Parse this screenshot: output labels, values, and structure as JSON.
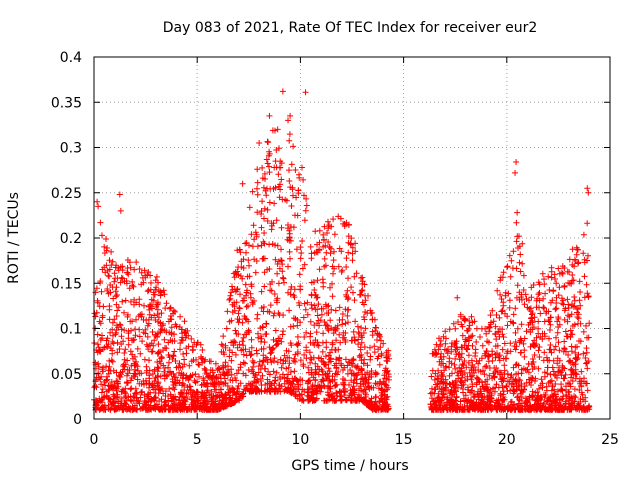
{
  "chart_data": {
    "type": "scatter",
    "title": "Day 083 of 2021, Rate Of TEC Index for receiver eur2",
    "xlabel": "GPS time / hours",
    "ylabel": "ROTI / TECUs",
    "xlim": [
      0,
      25
    ],
    "ylim": [
      0,
      0.4
    ],
    "x_ticks": [
      0,
      5,
      10,
      15,
      20,
      25
    ],
    "y_ticks": [
      0,
      0.05,
      0.1,
      0.15,
      0.2,
      0.25,
      0.3,
      0.35,
      0.4
    ],
    "x_tick_labels": [
      "0",
      "5",
      "10",
      "15",
      "20",
      "25"
    ],
    "y_tick_labels": [
      "0",
      "0.05",
      "0.1",
      "0.15",
      "0.2",
      "0.25",
      "0.3",
      "0.35",
      "0.4"
    ],
    "grid": true,
    "marker": "+",
    "color": "#ff0000",
    "envelope": {
      "note_x_hours": [
        0.0,
        0.3,
        1.0,
        2.0,
        3.0,
        4.0,
        5.0,
        6.0,
        7.0,
        7.5,
        8.0,
        8.5,
        9.0,
        9.5,
        10.0,
        10.5,
        11.0,
        12.0,
        12.5,
        13.0,
        13.5,
        14.0,
        14.2,
        16.3,
        17.0,
        18.0,
        19.0,
        20.0,
        20.5,
        21.0,
        22.0,
        23.0,
        23.5,
        24.0
      ],
      "upper_roti": [
        0.12,
        0.23,
        0.17,
        0.18,
        0.16,
        0.12,
        0.09,
        0.06,
        0.2,
        0.23,
        0.3,
        0.32,
        0.32,
        0.32,
        0.3,
        0.2,
        0.22,
        0.23,
        0.21,
        0.16,
        0.12,
        0.09,
        0.08,
        0.08,
        0.1,
        0.12,
        0.1,
        0.18,
        0.25,
        0.14,
        0.17,
        0.18,
        0.2,
        0.24
      ],
      "lower_roti": [
        0.01,
        0.01,
        0.01,
        0.01,
        0.01,
        0.01,
        0.01,
        0.01,
        0.02,
        0.03,
        0.03,
        0.03,
        0.03,
        0.03,
        0.02,
        0.02,
        0.02,
        0.02,
        0.02,
        0.02,
        0.01,
        0.01,
        0.01,
        0.01,
        0.01,
        0.01,
        0.01,
        0.01,
        0.01,
        0.01,
        0.01,
        0.01,
        0.01,
        0.01
      ]
    },
    "data_gaps_hours": [
      [
        14.3,
        16.3
      ]
    ],
    "outliers": [
      {
        "x": 0.15,
        "y": 0.24
      },
      {
        "x": 0.2,
        "y": 0.235
      },
      {
        "x": 1.25,
        "y": 0.248
      },
      {
        "x": 1.3,
        "y": 0.23
      },
      {
        "x": 7.2,
        "y": 0.26
      },
      {
        "x": 8.0,
        "y": 0.305
      },
      {
        "x": 8.5,
        "y": 0.335
      },
      {
        "x": 8.9,
        "y": 0.32
      },
      {
        "x": 9.15,
        "y": 0.362
      },
      {
        "x": 9.4,
        "y": 0.33
      },
      {
        "x": 9.5,
        "y": 0.335
      },
      {
        "x": 10.25,
        "y": 0.361
      },
      {
        "x": 17.6,
        "y": 0.134
      },
      {
        "x": 20.45,
        "y": 0.284
      },
      {
        "x": 20.4,
        "y": 0.272
      },
      {
        "x": 20.5,
        "y": 0.228
      },
      {
        "x": 23.9,
        "y": 0.255
      },
      {
        "x": 23.95,
        "y": 0.25
      }
    ]
  }
}
